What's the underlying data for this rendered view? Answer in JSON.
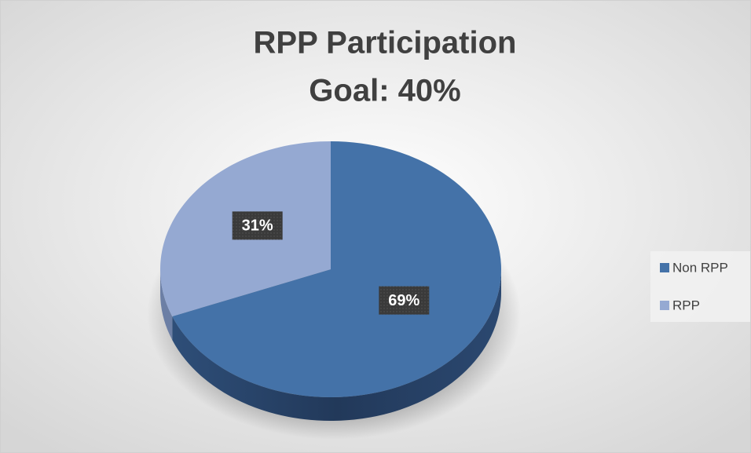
{
  "chart_data": {
    "type": "pie",
    "title": "RPP Participation",
    "subtitle": "Goal: 40%",
    "categories": [
      "Non RPP",
      "RPP"
    ],
    "values": [
      69,
      31
    ],
    "value_labels": [
      "69%",
      "31%"
    ],
    "colors": [
      "#4472a8",
      "#95a9d2"
    ],
    "legend": "right"
  }
}
